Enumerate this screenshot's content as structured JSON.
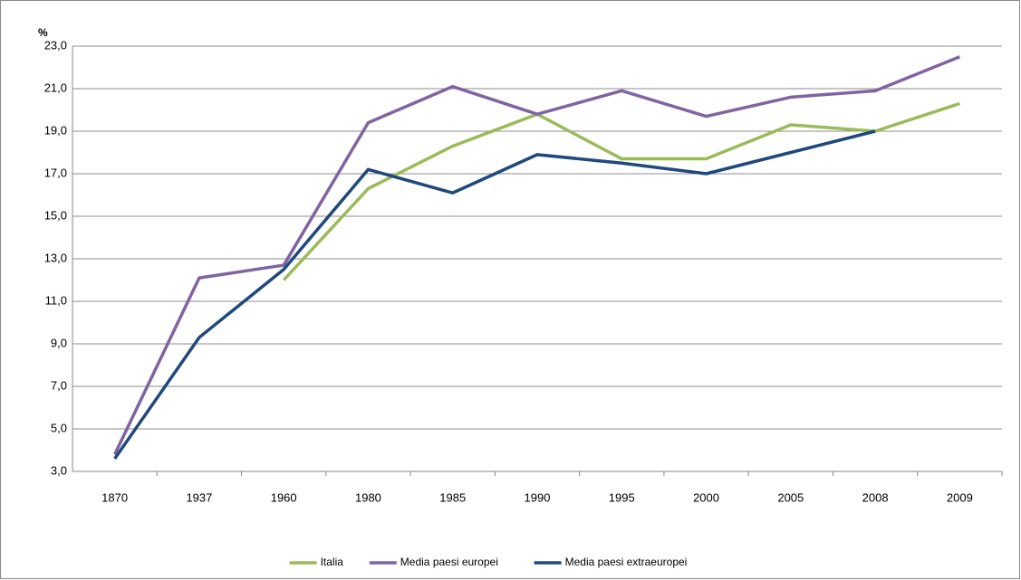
{
  "chart_data": {
    "type": "line",
    "y_unit_label": "%",
    "categories": [
      "1870",
      "1937",
      "1960",
      "1980",
      "1985",
      "1990",
      "1995",
      "2000",
      "2005",
      "2008",
      "2009"
    ],
    "series": [
      {
        "name": "Italia",
        "color": "#9bbb59",
        "values": [
          null,
          null,
          12.0,
          16.3,
          18.3,
          19.8,
          17.7,
          17.7,
          19.3,
          19.0,
          20.3
        ]
      },
      {
        "name": "Media paesi europei",
        "color": "#8064a2",
        "values": [
          3.8,
          12.1,
          12.7,
          19.4,
          21.1,
          19.8,
          20.9,
          19.7,
          20.6,
          20.9,
          22.5
        ]
      },
      {
        "name": "Media paesi extraeuropei",
        "color": "#1f497d",
        "values": [
          3.6,
          9.3,
          12.5,
          17.2,
          16.1,
          17.9,
          17.5,
          17.0,
          18.0,
          19.0,
          null
        ]
      }
    ],
    "ylim": [
      3,
      23
    ],
    "yticks": [
      {
        "value": 3,
        "label": "3,0"
      },
      {
        "value": 5,
        "label": "5,0"
      },
      {
        "value": 7,
        "label": "7,0"
      },
      {
        "value": 9,
        "label": "9,0"
      },
      {
        "value": 11,
        "label": "11,0"
      },
      {
        "value": 13,
        "label": "13,0"
      },
      {
        "value": 15,
        "label": "15,0"
      },
      {
        "value": 17,
        "label": "17,0"
      },
      {
        "value": 19,
        "label": "19,0"
      },
      {
        "value": 21,
        "label": "21,0"
      },
      {
        "value": 23,
        "label": "23,0"
      }
    ],
    "grid": true,
    "legend": "bottom"
  }
}
